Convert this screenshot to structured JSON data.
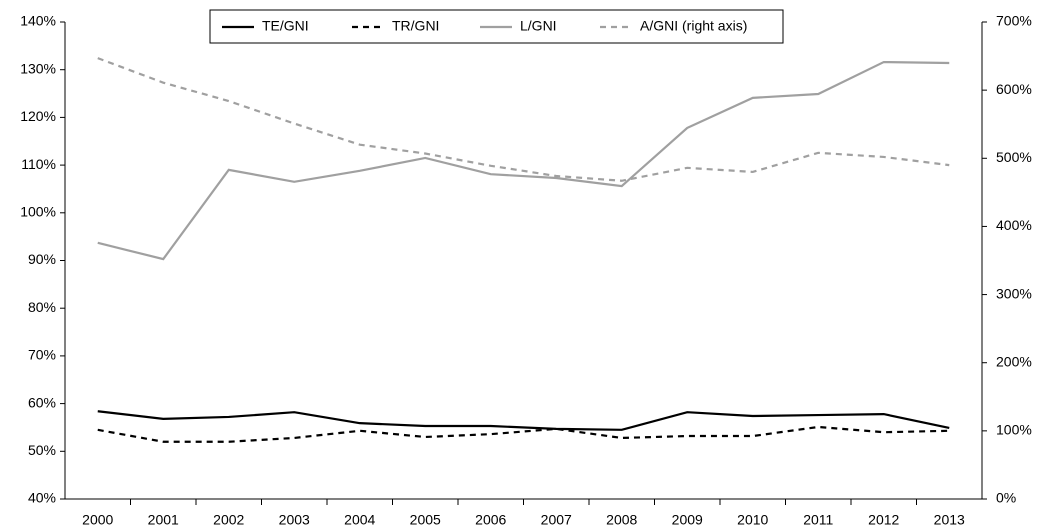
{
  "chart_data": {
    "type": "line",
    "categories": [
      "2000",
      "2001",
      "2002",
      "2003",
      "2004",
      "2005",
      "2006",
      "2007",
      "2008",
      "2009",
      "2010",
      "2011",
      "2012",
      "2013"
    ],
    "series": [
      {
        "name": "TE/GNI",
        "color": "#000000",
        "dashed": false,
        "values": [
          58.4,
          56.8,
          57.2,
          58.2,
          55.9,
          55.3,
          55.3,
          54.7,
          54.5,
          58.2,
          57.4,
          57.6,
          57.8,
          54.9
        ]
      },
      {
        "name": "TR/GNI",
        "color": "#000000",
        "dashed": true,
        "values": [
          54.5,
          52.0,
          52.0,
          52.8,
          54.3,
          53.0,
          53.6,
          54.7,
          52.8,
          53.2,
          53.2,
          55.1,
          54.0,
          54.3
        ]
      },
      {
        "name": "L/GNI",
        "color": "#a0a0a0",
        "dashed": false,
        "values": [
          93.7,
          90.3,
          109.0,
          106.5,
          108.8,
          111.5,
          108.1,
          107.3,
          105.6,
          117.8,
          124.1,
          124.9,
          131.6,
          131.4
        ]
      },
      {
        "name": "A/GNI (right axis)",
        "color": "#a0a0a0",
        "dashed": true,
        "axis": "y2",
        "values": [
          647,
          611,
          584,
          551,
          520,
          507,
          489,
          474,
          467,
          486,
          480,
          508,
          502,
          490
        ]
      }
    ],
    "ylim": [
      40,
      140
    ],
    "yticks": [
      {
        "value": 40,
        "label": "40%"
      },
      {
        "value": 50,
        "label": "50%"
      },
      {
        "value": 60,
        "label": "60%"
      },
      {
        "value": 70,
        "label": "70%"
      },
      {
        "value": 80,
        "label": "80%"
      },
      {
        "value": 90,
        "label": "90%"
      },
      {
        "value": 100,
        "label": "100%"
      },
      {
        "value": 110,
        "label": "110%"
      },
      {
        "value": 120,
        "label": "120%"
      },
      {
        "value": 130,
        "label": "130%"
      },
      {
        "value": 140,
        "label": "140%"
      }
    ],
    "y2lim": [
      0,
      700
    ],
    "y2ticks": [
      {
        "value": 0,
        "label": "0%"
      },
      {
        "value": 100,
        "label": "100%"
      },
      {
        "value": 200,
        "label": "200%"
      },
      {
        "value": 300,
        "label": "300%"
      },
      {
        "value": 400,
        "label": "400%"
      },
      {
        "value": 500,
        "label": "500%"
      },
      {
        "value": 600,
        "label": "600%"
      },
      {
        "value": 700,
        "label": "700%"
      }
    ],
    "grid": false,
    "legend": "top"
  }
}
